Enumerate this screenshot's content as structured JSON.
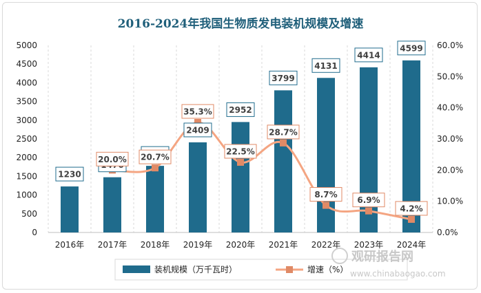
{
  "colors": {
    "bar": "#1f6b8c",
    "line": "#f4a582",
    "line_marker": "#e08a66",
    "grid": "#d9d9d9",
    "title": "#1f5f7a"
  },
  "chart_data": {
    "type": "bar",
    "title": "2016-2024年我国生物质发电装机规模及增速",
    "categories": [
      "2016年",
      "2017年",
      "2018年",
      "2019年",
      "2020年",
      "2021年",
      "2022年",
      "2023年",
      "2024年"
    ],
    "series": [
      {
        "name": "装机规模（万千瓦时）",
        "type": "bar",
        "axis": "left",
        "values": [
          1230,
          1476,
          1781,
          2409,
          2952,
          3799,
          4131,
          4414,
          4599
        ]
      },
      {
        "name": "增速（%）",
        "type": "line",
        "axis": "right",
        "values": [
          null,
          20.0,
          20.7,
          35.3,
          22.5,
          28.7,
          8.7,
          6.9,
          4.2
        ]
      }
    ],
    "bar_labels": [
      "1230",
      "1476",
      "1781",
      "2409",
      "2952",
      "3799",
      "4131",
      "4414",
      "4599"
    ],
    "line_labels": [
      "",
      "20.0%",
      "20.7%",
      "35.3%",
      "22.5%",
      "28.7%",
      "8.7%",
      "6.9%",
      "4.2%"
    ],
    "y_left": {
      "min": 0,
      "max": 5000,
      "step": 500,
      "ticks": [
        "0",
        "500",
        "1000",
        "1500",
        "2000",
        "2500",
        "3000",
        "3500",
        "4000",
        "4500",
        "5000"
      ]
    },
    "y_right": {
      "min": 0,
      "max": 60,
      "step": 10,
      "ticks": [
        "0.0%",
        "10.0%",
        "20.0%",
        "30.0%",
        "40.0%",
        "50.0%",
        "60.0%"
      ]
    },
    "grid": "vertical-dashed",
    "legend": {
      "position": "bottom",
      "items": [
        "装机规模（万千瓦时）",
        "增速（%）"
      ]
    }
  },
  "watermark": {
    "brand": "观研报告网",
    "url": "www.chinabaogao.com"
  }
}
